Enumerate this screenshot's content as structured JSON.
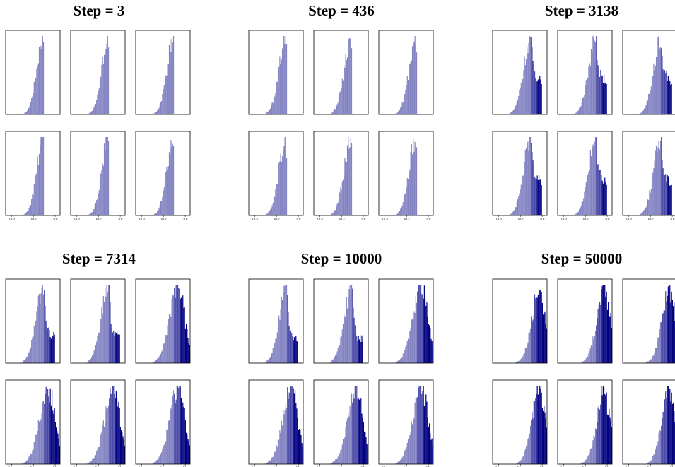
{
  "figure": {
    "colors": {
      "bin_0": "#d6d6ec",
      "bin_1": "#8383c2",
      "bin_2": "#4747a8",
      "bin_3": "#000080",
      "frame": "#000000",
      "background": "#ffffff"
    }
  },
  "chart_data": [
    {
      "type": "bar",
      "title": "Step = 3",
      "x_scale": "log",
      "xlim": [
        0.0001,
        1
      ],
      "x_tick_labels": [
        "10⁻⁴",
        "10⁻²",
        "10⁰"
      ],
      "grid": false,
      "subplots": 6,
      "shape": {
        "peak": -1.05,
        "cut": -1.0,
        "tail": 0.0,
        "decay": 0.0,
        "left_width": 1.0,
        "right": 1.0
      }
    },
    {
      "type": "bar",
      "title": "Step = 436",
      "x_scale": "log",
      "xlim": [
        0.0001,
        1
      ],
      "x_tick_labels": [
        "10⁻⁴",
        "10⁻²",
        "10⁰"
      ],
      "grid": false,
      "subplots": 6,
      "shape": {
        "peak": -1.1,
        "cut": -1.0,
        "tail": 0.07,
        "decay": 0.5,
        "left_width": 1.05,
        "right": 1.0
      }
    },
    {
      "type": "bar",
      "title": "Step = 3138",
      "x_scale": "log",
      "xlim": [
        0.0001,
        1
      ],
      "x_tick_labels": [
        "10⁻⁴",
        "10⁻²",
        "10⁰"
      ],
      "grid": false,
      "subplots": 6,
      "shape": {
        "peak": -1.0,
        "cut": 0.0,
        "tail": 0.55,
        "decay": 1.0,
        "left_width": 1.1,
        "right": 1.0
      }
    },
    {
      "type": "bar",
      "title": "Step = 7314",
      "x_scale": "log",
      "xlim": [
        0.0001,
        1
      ],
      "x_tick_labels": [
        "10⁻⁴",
        "10⁻²",
        "10⁰"
      ],
      "grid": false,
      "subplots": 6,
      "shape": {
        "peak": -1.0,
        "cut": 0.0,
        "tail": 0.4,
        "decay": 0.55,
        "left_width": 1.15,
        "right": 1.0,
        "broad": [
          2,
          3,
          4,
          5
        ]
      }
    },
    {
      "type": "bar",
      "title": "Step = 10000",
      "x_scale": "log",
      "xlim": [
        0.0001,
        1
      ],
      "x_tick_labels": [
        "10⁻⁴",
        "10⁻²",
        "10⁰"
      ],
      "grid": false,
      "subplots": 6,
      "shape": {
        "peak": -1.0,
        "cut": 0.0,
        "tail": 0.35,
        "decay": 0.5,
        "left_width": 1.15,
        "right": 1.0,
        "broad": [
          2,
          3,
          4,
          5
        ]
      }
    },
    {
      "type": "bar",
      "title": "Step = 50000",
      "x_scale": "log",
      "xlim": [
        0.0001,
        1
      ],
      "x_tick_labels": [
        "10⁻⁴",
        "10⁻²",
        "10⁰"
      ],
      "grid": false,
      "subplots": 6,
      "shape": {
        "peak": -0.6,
        "cut": 0.0,
        "tail": 0.5,
        "decay": 0.6,
        "left_width": 1.0,
        "right": 0.6,
        "broad": [
          0,
          1,
          2,
          3,
          4,
          5
        ]
      }
    }
  ]
}
